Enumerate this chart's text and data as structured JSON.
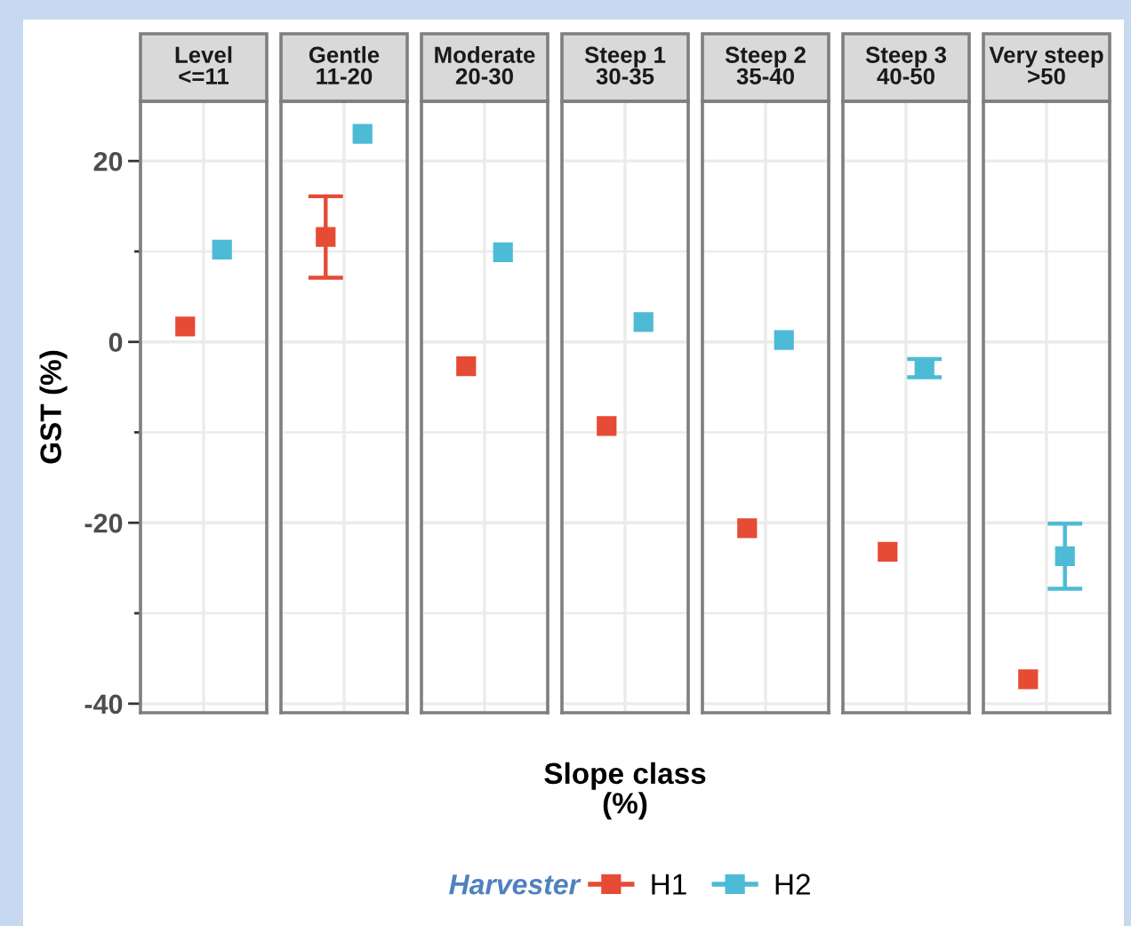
{
  "chart_data": {
    "type": "scatter",
    "categories": [
      "Level\n<=11",
      "Gentle\n11-20",
      "Moderate\n20-30",
      "Steep 1\n30-35",
      "Steep 2\n35-40",
      "Steep 3\n40-50",
      "Very steep\n>50"
    ],
    "series": [
      {
        "name": "H1",
        "color": "#e64b35",
        "values": [
          1.7,
          11.6,
          -2.7,
          -9.3,
          -20.6,
          -23.2,
          -37.3
        ],
        "errors": [
          null,
          [
            7.1,
            16.1
          ],
          null,
          null,
          null,
          null,
          null
        ]
      },
      {
        "name": "H2",
        "color": "#4dbbd5",
        "values": [
          10.2,
          23.0,
          9.9,
          2.2,
          0.2,
          -2.9,
          -23.7
        ],
        "errors": [
          null,
          null,
          null,
          null,
          null,
          [
            -3.9,
            -1.9
          ],
          [
            -27.3,
            -20.1
          ]
        ]
      }
    ],
    "ylim": [
      -41,
      26.6
    ],
    "yticks": [
      -40,
      {
        "value": -30,
        "label": null
      },
      -20,
      {
        "value": -10,
        "label": null
      },
      0,
      {
        "value": 10,
        "label": null
      },
      20
    ],
    "xlabel": "Slope class\n(%)",
    "ylabel": "GST (%)",
    "legend_title": "Harvester",
    "legend": "bottom",
    "grid": true,
    "marker": "square"
  }
}
